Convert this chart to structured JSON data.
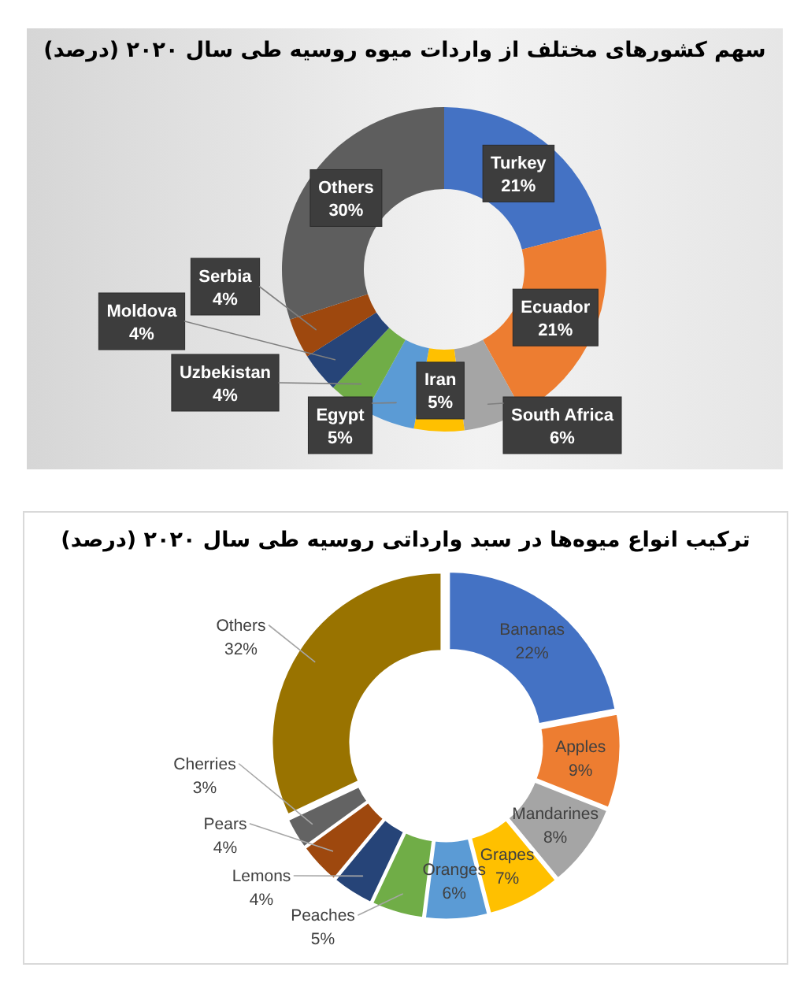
{
  "chart_data": [
    {
      "type": "donut",
      "title": "سهم کشورهای مختلف از واردات میوه روسیه طی سال ۲۰۲۰ (درصد)",
      "categories": [
        "Turkey",
        "Ecuador",
        "South Africa",
        "Iran",
        "Egypt",
        "Uzbekistan",
        "Moldova",
        "Serbia",
        "Others"
      ],
      "values": [
        21,
        21,
        6,
        5,
        5,
        4,
        4,
        4,
        30
      ],
      "colors": [
        "#4472c4",
        "#ed7d31",
        "#a5a5a5",
        "#ffc000",
        "#5b9bd5",
        "#70ad47",
        "#264478",
        "#9e480e",
        "#5e5e5e"
      ],
      "value_labels": [
        "21%",
        "21%",
        "6%",
        "5%",
        "5%",
        "4%",
        "4%",
        "4%",
        "30%"
      ]
    },
    {
      "type": "donut",
      "title": "ترکیب انواع میوه‌ها در سبد وارداتی روسیه طی سال ۲۰۲۰ (درصد)",
      "categories": [
        "Bananas",
        "Apples",
        "Mandarines",
        "Grapes",
        "Oranges",
        "Peaches",
        "Lemons",
        "Pears",
        "Cherries",
        "Others"
      ],
      "values": [
        22,
        9,
        8,
        7,
        6,
        5,
        4,
        4,
        3,
        32
      ],
      "colors": [
        "#4472c4",
        "#ed7d31",
        "#a5a5a5",
        "#ffc000",
        "#5b9bd5",
        "#70ad47",
        "#264478",
        "#9e480e",
        "#636363",
        "#997300"
      ],
      "value_labels": [
        "22%",
        "9%",
        "8%",
        "7%",
        "6%",
        "5%",
        "4%",
        "4%",
        "3%",
        "32%"
      ]
    }
  ]
}
